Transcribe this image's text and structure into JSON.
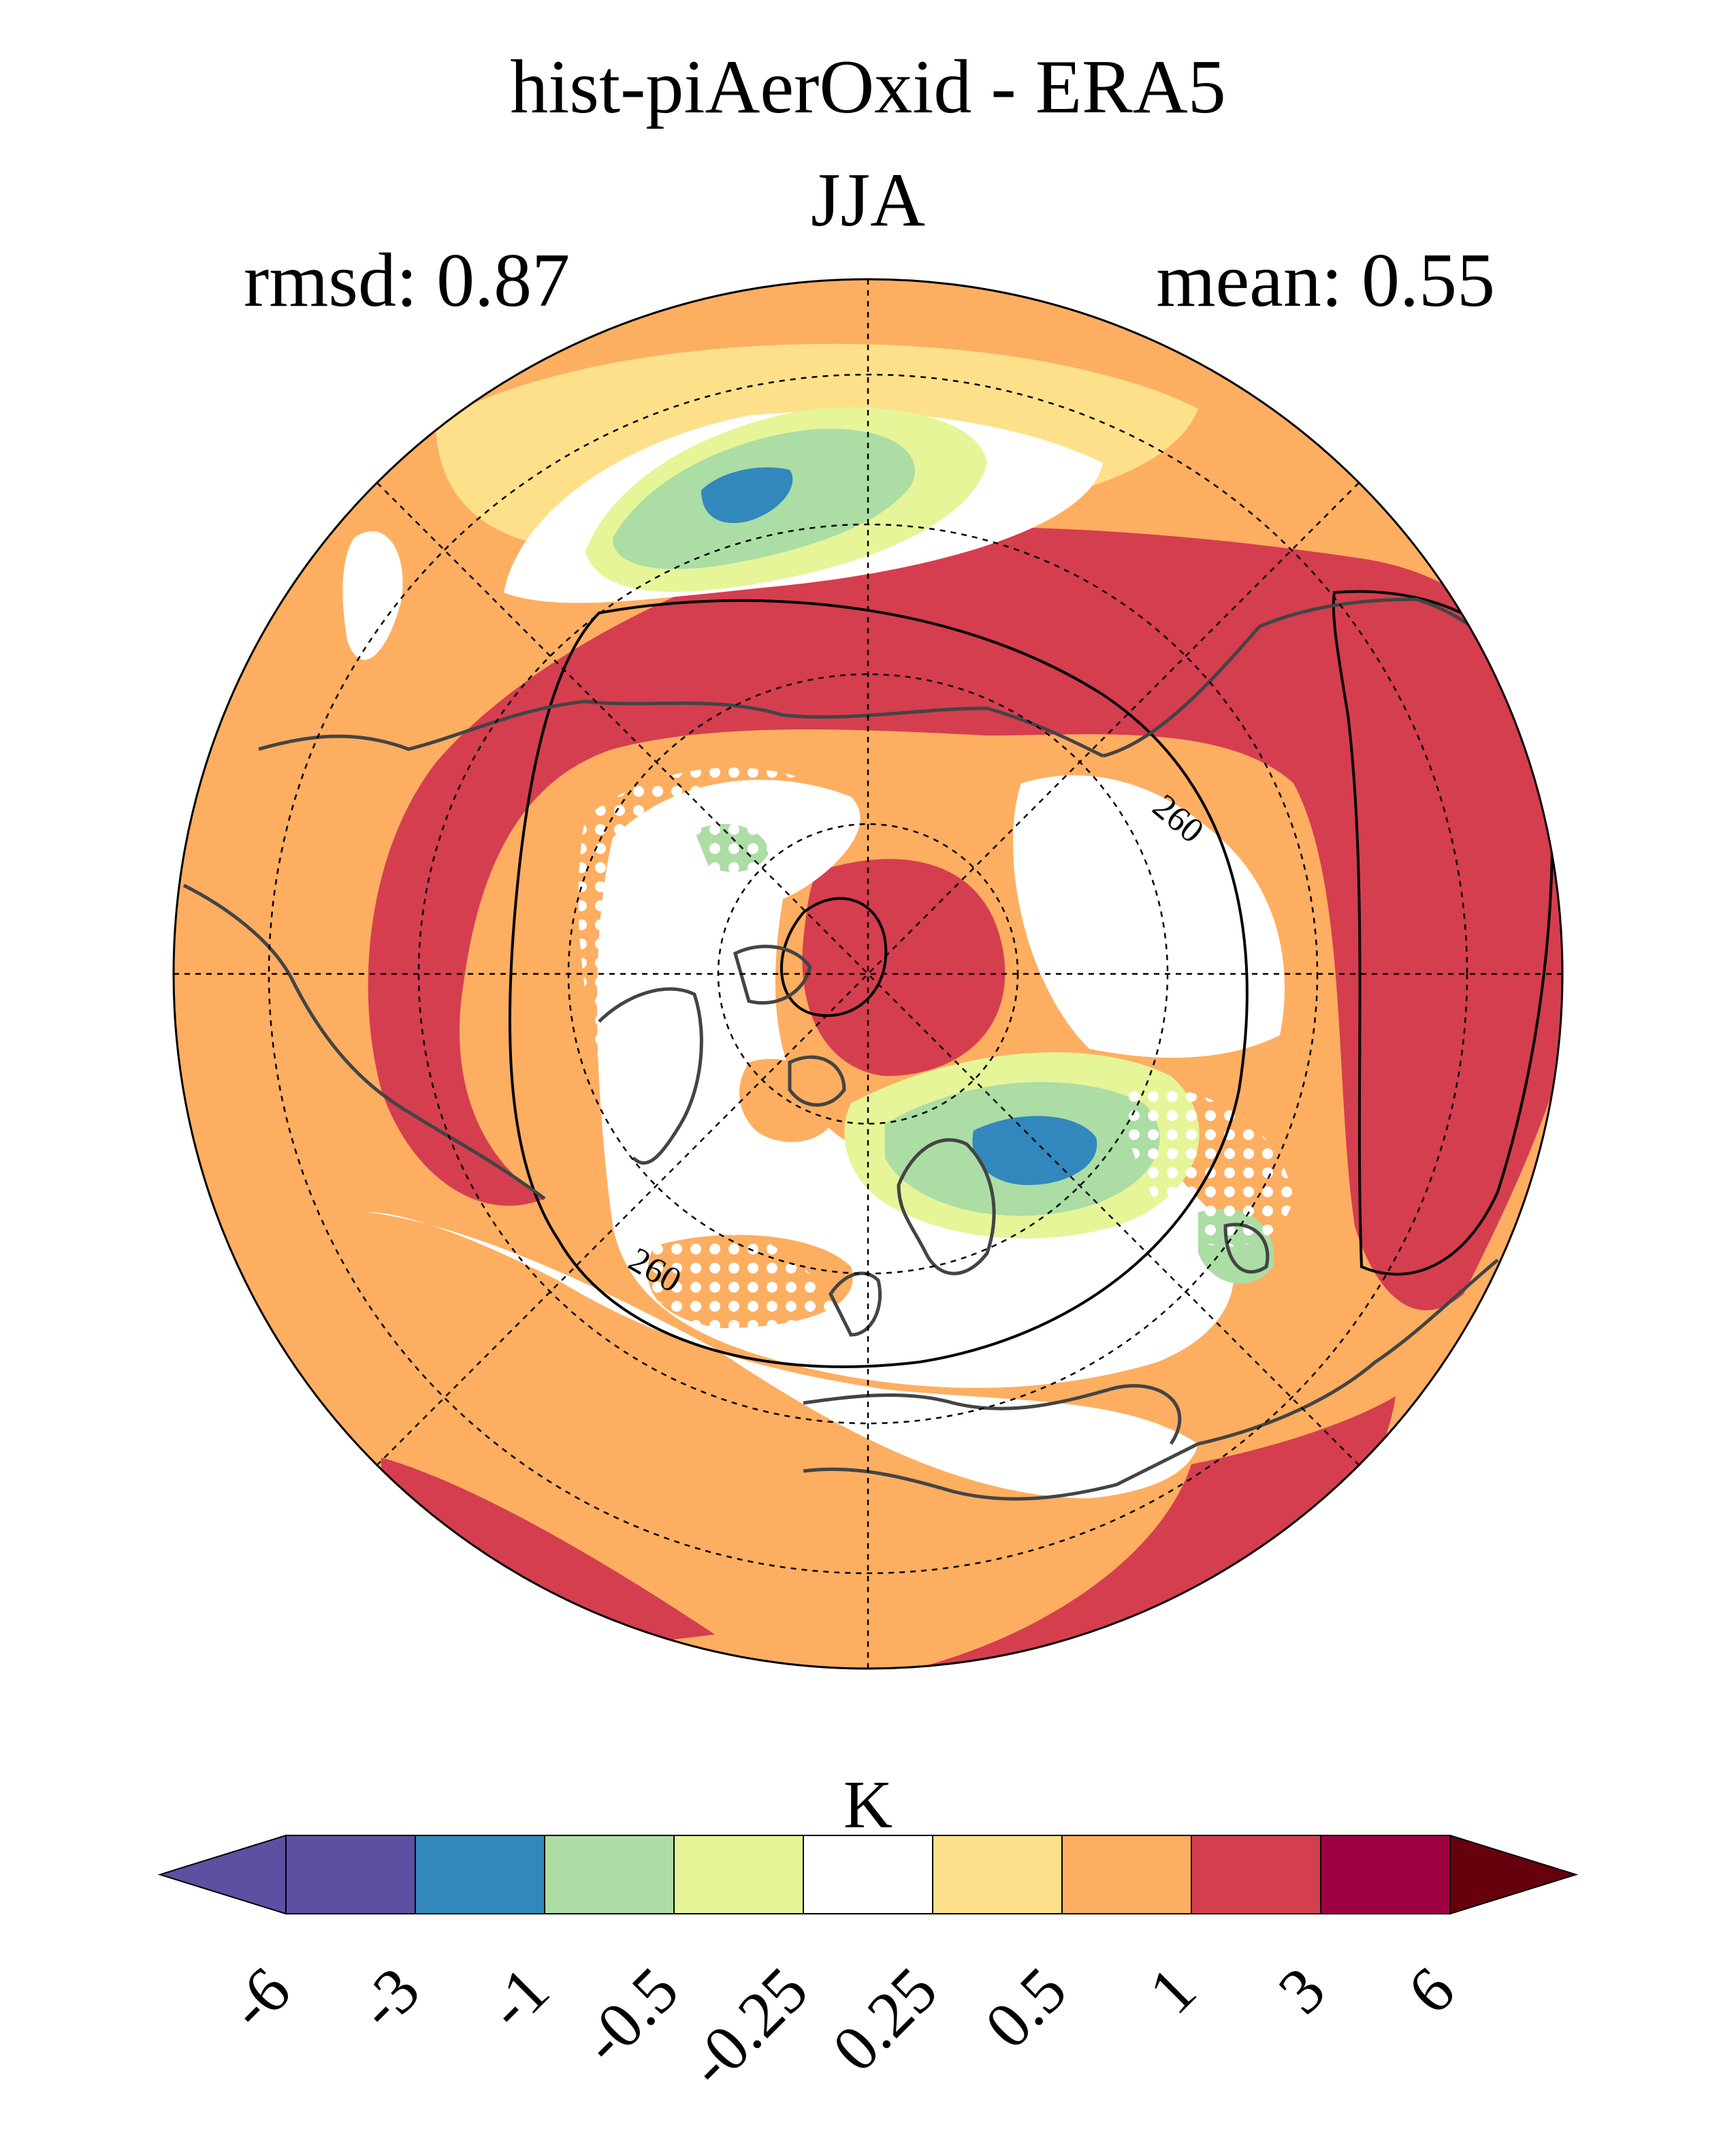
{
  "title": "hist-piAerOxid - ERA5",
  "season": "JJA",
  "rmsd_label": "rmsd: 0.87",
  "mean_label": "mean: 0.55",
  "map": {
    "projection": "north-polar-stereographic",
    "contour_label": "260",
    "field_colors": {
      "strong_warm": "#d53e4f",
      "warm": "#f46d43",
      "mild_warm": "#fdae61",
      "slight_warm": "#fee08b",
      "neutral": "#ffffff",
      "slight_cool": "#e6f598",
      "mild_cool": "#abdda4",
      "cool": "#3288bd"
    },
    "coastline_color": "#444444",
    "stippling": "white dots mark regions where difference is not significant"
  },
  "colorbar": {
    "units": "K",
    "colors": [
      "#5e4fa2",
      "#5e4fa2",
      "#3288bd",
      "#abdda4",
      "#e6f598",
      "#ffffff",
      "#fee08b",
      "#fdae61",
      "#d53e4f",
      "#9e0142",
      "#67000d"
    ],
    "tick_labels": [
      "-6",
      "-3",
      "-1",
      "-0.5",
      "-0.25",
      "0.25",
      "0.5",
      "1",
      "3",
      "6"
    ]
  }
}
